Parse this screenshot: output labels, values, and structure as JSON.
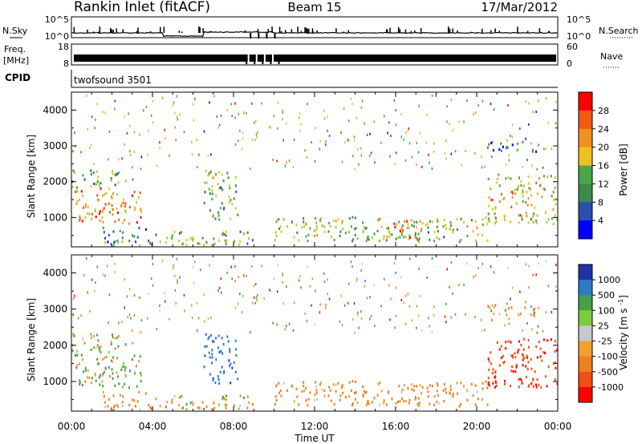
{
  "header": {
    "station": "Rankin Inlet (fitACF)",
    "beam": "Beam 15",
    "date": "17/Mar/2012"
  },
  "noise_panel": {
    "left_label": "N.Sky",
    "right_label": "N.Search",
    "left_ticks": [
      "10^5",
      "10^0"
    ],
    "right_ticks": [
      "10^5",
      "10^0"
    ]
  },
  "freq_panel": {
    "left_label_line1": "Freq.",
    "left_label_line2": "[MHz]",
    "right_label": "Nave",
    "left_ticks": [
      "18",
      "8"
    ],
    "right_ticks": [
      "60",
      "0"
    ]
  },
  "cpid_panel": {
    "label": "CPID",
    "value": "twofsound 3501"
  },
  "x_axis": {
    "label": "Time UT",
    "tick_labels": [
      "00:00",
      "04:00",
      "08:00",
      "12:00",
      "16:00",
      "20:00",
      "00:00"
    ],
    "range_hours": [
      0,
      24
    ]
  },
  "colors": {
    "power_scale": [
      "#0000ff",
      "#2a4fb0",
      "#3b8a4a",
      "#4aa64a",
      "#b6cc2a",
      "#f0c020",
      "#f09020",
      "#f05a14",
      "#ff0000"
    ],
    "velocity_scale": [
      "#2233aa",
      "#2e7bc4",
      "#46a046",
      "#7ccc3a",
      "#c8c8c8",
      "#f0a030",
      "#f08020",
      "#f05014",
      "#ff0000"
    ]
  },
  "chart_data": [
    {
      "type": "heatmap",
      "title": "Power",
      "xlabel": "Time UT",
      "ylabel": "Slant Range [km]",
      "xlim": [
        0,
        24
      ],
      "ylim": [
        180,
        4500
      ],
      "y_tick_labels": [
        "1000",
        "2000",
        "3000",
        "4000"
      ],
      "colorbar": {
        "label": "Power [dB]",
        "tick_labels": [
          "4",
          "8",
          "12",
          "16",
          "20",
          "24",
          "28"
        ],
        "range": [
          0,
          32
        ]
      },
      "regions": [
        {
          "t0": 0.0,
          "t1": 3.5,
          "r0": 800,
          "r1": 1800,
          "value_db": 22
        },
        {
          "t0": 0.0,
          "t1": 3.0,
          "r0": 1800,
          "r1": 2300,
          "value_db": 12
        },
        {
          "t0": 1.5,
          "t1": 4.0,
          "r0": 200,
          "r1": 700,
          "value_db": 10
        },
        {
          "t0": 6.5,
          "t1": 8.2,
          "r0": 900,
          "r1": 2300,
          "value_db": 14
        },
        {
          "t0": 4.0,
          "t1": 9.0,
          "r0": 200,
          "r1": 600,
          "value_db": 14
        },
        {
          "t0": 10.0,
          "t1": 20.5,
          "r0": 300,
          "r1": 1000,
          "value_db": 15
        },
        {
          "t0": 15.5,
          "t1": 17.5,
          "r0": 400,
          "r1": 900,
          "value_db": 24
        },
        {
          "t0": 20.5,
          "t1": 24.0,
          "r0": 800,
          "r1": 2200,
          "value_db": 18
        },
        {
          "t0": 20.5,
          "t1": 23.0,
          "r0": 2800,
          "r1": 3100,
          "value_db": 6
        }
      ]
    },
    {
      "type": "heatmap",
      "title": "Velocity",
      "xlabel": "Time UT",
      "ylabel": "Slant Range [km]",
      "xlim": [
        0,
        24
      ],
      "ylim": [
        180,
        4500
      ],
      "y_tick_labels": [
        "1000",
        "2000",
        "3000",
        "4000"
      ],
      "colorbar": {
        "label": "Velocity [m s-1]",
        "tick_labels": [
          "1000",
          "500",
          "100",
          "25",
          "-25",
          "-100",
          "-500",
          "-1000"
        ]
      },
      "regions": [
        {
          "t0": 0.0,
          "t1": 3.5,
          "r0": 800,
          "r1": 1800,
          "value_ms": 80
        },
        {
          "t0": 0.0,
          "t1": 3.0,
          "r0": 1800,
          "r1": 2300,
          "value_ms": 0
        },
        {
          "t0": 1.5,
          "t1": 4.0,
          "r0": 200,
          "r1": 700,
          "value_ms": -150
        },
        {
          "t0": 6.5,
          "t1": 8.2,
          "r0": 900,
          "r1": 2300,
          "value_ms": 600
        },
        {
          "t0": 4.0,
          "t1": 9.0,
          "r0": 200,
          "r1": 600,
          "value_ms": -100
        },
        {
          "t0": 10.0,
          "t1": 20.5,
          "r0": 300,
          "r1": 1000,
          "value_ms": -200
        },
        {
          "t0": 20.5,
          "t1": 24.0,
          "r0": 800,
          "r1": 2200,
          "value_ms": -700
        },
        {
          "t0": 20.5,
          "t1": 23.0,
          "r0": 2800,
          "r1": 3100,
          "value_ms": 0
        }
      ]
    }
  ]
}
